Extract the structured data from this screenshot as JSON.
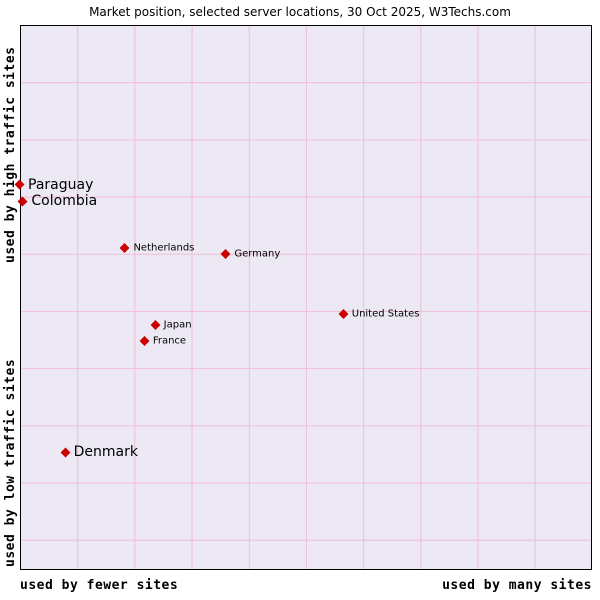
{
  "title": "Market position, selected server locations, 30 Oct 2025, W3Techs.com",
  "axes": {
    "y_top": "used by high traffic sites",
    "y_bottom": "used by low traffic sites",
    "x_left": "used by fewer sites",
    "x_right": "used by many sites"
  },
  "colors": {
    "plot_background": "#ece8f4",
    "grid_line": "#f0bcd8",
    "marker": "#cc0000",
    "border": "#000000",
    "page_background": "#ffffff"
  },
  "chart_data": {
    "type": "scatter",
    "title": "Market position, selected server locations, 30 Oct 2025, W3Techs.com",
    "x_axis": {
      "left_label": "used by fewer sites",
      "right_label": "used by many sites"
    },
    "y_axis": {
      "top_label": "used by high traffic sites",
      "bottom_label": "used by low traffic sites"
    },
    "grid": true,
    "legend": false,
    "points": [
      {
        "name": "Paraguay",
        "x_pct": 0.0,
        "y_pct": 29.2,
        "label_size": "large"
      },
      {
        "name": "Colombia",
        "x_pct": 0.6,
        "y_pct": 32.3,
        "label_size": "large"
      },
      {
        "name": "Netherlands",
        "x_pct": 18.5,
        "y_pct": 40.9,
        "label_size": "small"
      },
      {
        "name": "Germany",
        "x_pct": 36.2,
        "y_pct": 42.0,
        "label_size": "small"
      },
      {
        "name": "United States",
        "x_pct": 56.8,
        "y_pct": 53.0,
        "label_size": "small"
      },
      {
        "name": "Japan",
        "x_pct": 23.8,
        "y_pct": 55.0,
        "label_size": "small"
      },
      {
        "name": "France",
        "x_pct": 21.9,
        "y_pct": 58.0,
        "label_size": "small"
      },
      {
        "name": "Denmark",
        "x_pct": 8.0,
        "y_pct": 78.5,
        "label_size": "large"
      }
    ]
  }
}
